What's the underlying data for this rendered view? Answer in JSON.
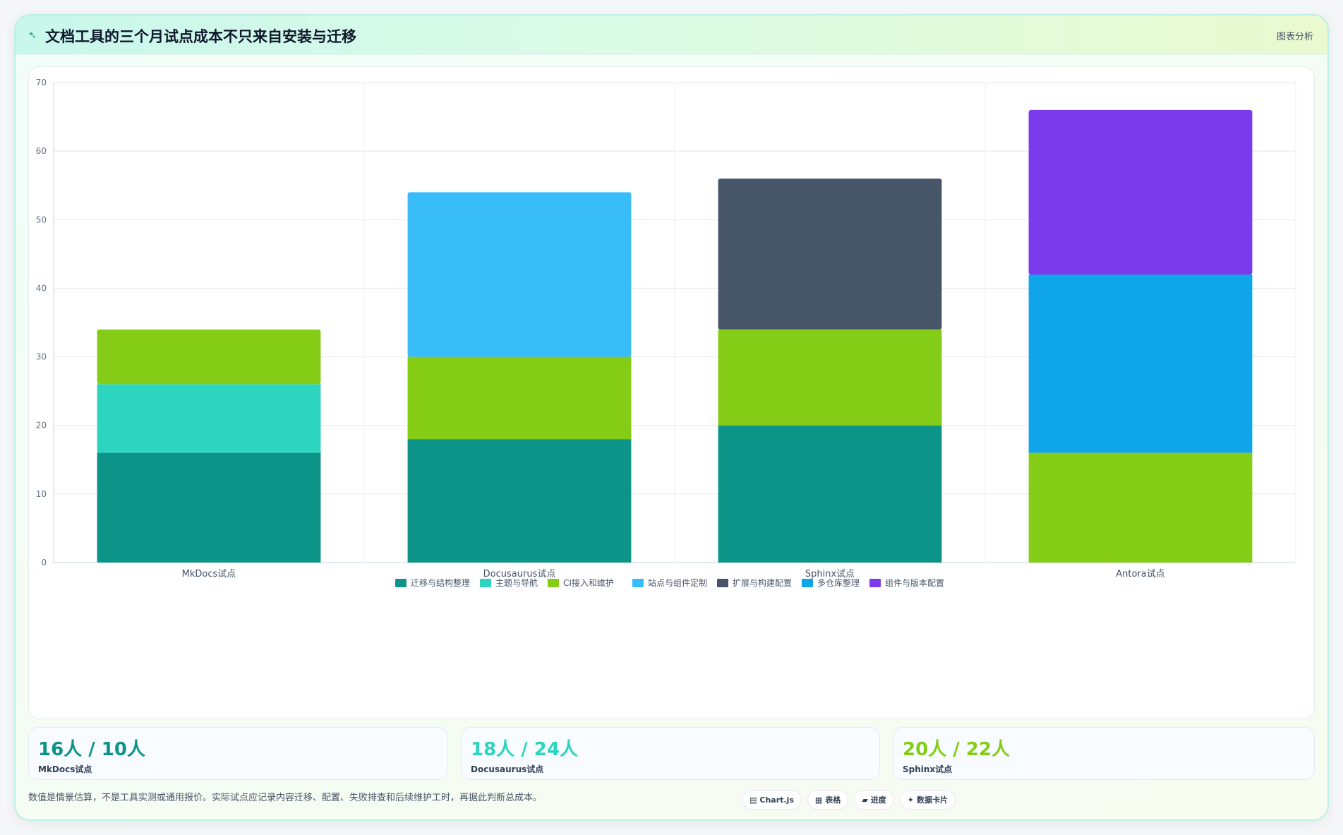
{
  "header": {
    "icon": "chart-icon",
    "title": "文档工具的三个月试点成本不只来自安装与迁移",
    "badge": "图表分析"
  },
  "chart_data": {
    "type": "bar",
    "stacked": true,
    "categories": [
      "MkDocs试点",
      "Docusaurus试点",
      "Sphinx试点",
      "Antora试点"
    ],
    "series": [
      {
        "name": "迁移与结构整理",
        "color": "#0d9488",
        "values": [
          16,
          18,
          20,
          0
        ]
      },
      {
        "name": "主题与导航",
        "color": "#2dd4bf",
        "values": [
          10,
          0,
          0,
          0
        ]
      },
      {
        "name": "CI接入和维护",
        "color": "#84cc16",
        "values": [
          8,
          12,
          14,
          16
        ]
      },
      {
        "name": "站点与组件定制",
        "color": "#38bdf8",
        "values": [
          0,
          24,
          0,
          0
        ]
      },
      {
        "name": "扩展与构建配置",
        "color": "#475569",
        "values": [
          0,
          0,
          22,
          0
        ]
      },
      {
        "name": "多仓库整理",
        "color": "#0ea5e9",
        "values": [
          0,
          0,
          0,
          26
        ]
      },
      {
        "name": "组件与版本配置",
        "color": "#7c3aed",
        "values": [
          0,
          0,
          0,
          24
        ]
      }
    ],
    "ylim": [
      0,
      70
    ],
    "yticks": [
      0,
      10,
      20,
      30,
      40,
      50,
      60,
      70
    ],
    "grid": true,
    "legend": "bottom"
  },
  "stats": [
    {
      "value": "16人 / 10人",
      "label": "MkDocs试点",
      "color": "#0d9488"
    },
    {
      "value": "18人 / 24人",
      "label": "Docusaurus试点",
      "color": "#2dd4bf"
    },
    {
      "value": "20人 / 22人",
      "label": "Sphinx试点",
      "color": "#84cc16"
    }
  ],
  "footnote": "数值是情景估算，不是工具实测或通用报价。实际试点应记录内容迁移、配置、失败排查和后续维护工时，再据此判断总成本。",
  "pills": [
    {
      "icon": "chart-icon",
      "glyph": "▤",
      "label": "Chart.js"
    },
    {
      "icon": "table-icon",
      "glyph": "▦",
      "label": "表格"
    },
    {
      "icon": "progress-icon",
      "glyph": "▰",
      "label": "进度"
    },
    {
      "icon": "card-icon",
      "glyph": "✦",
      "label": "数据卡片"
    }
  ]
}
